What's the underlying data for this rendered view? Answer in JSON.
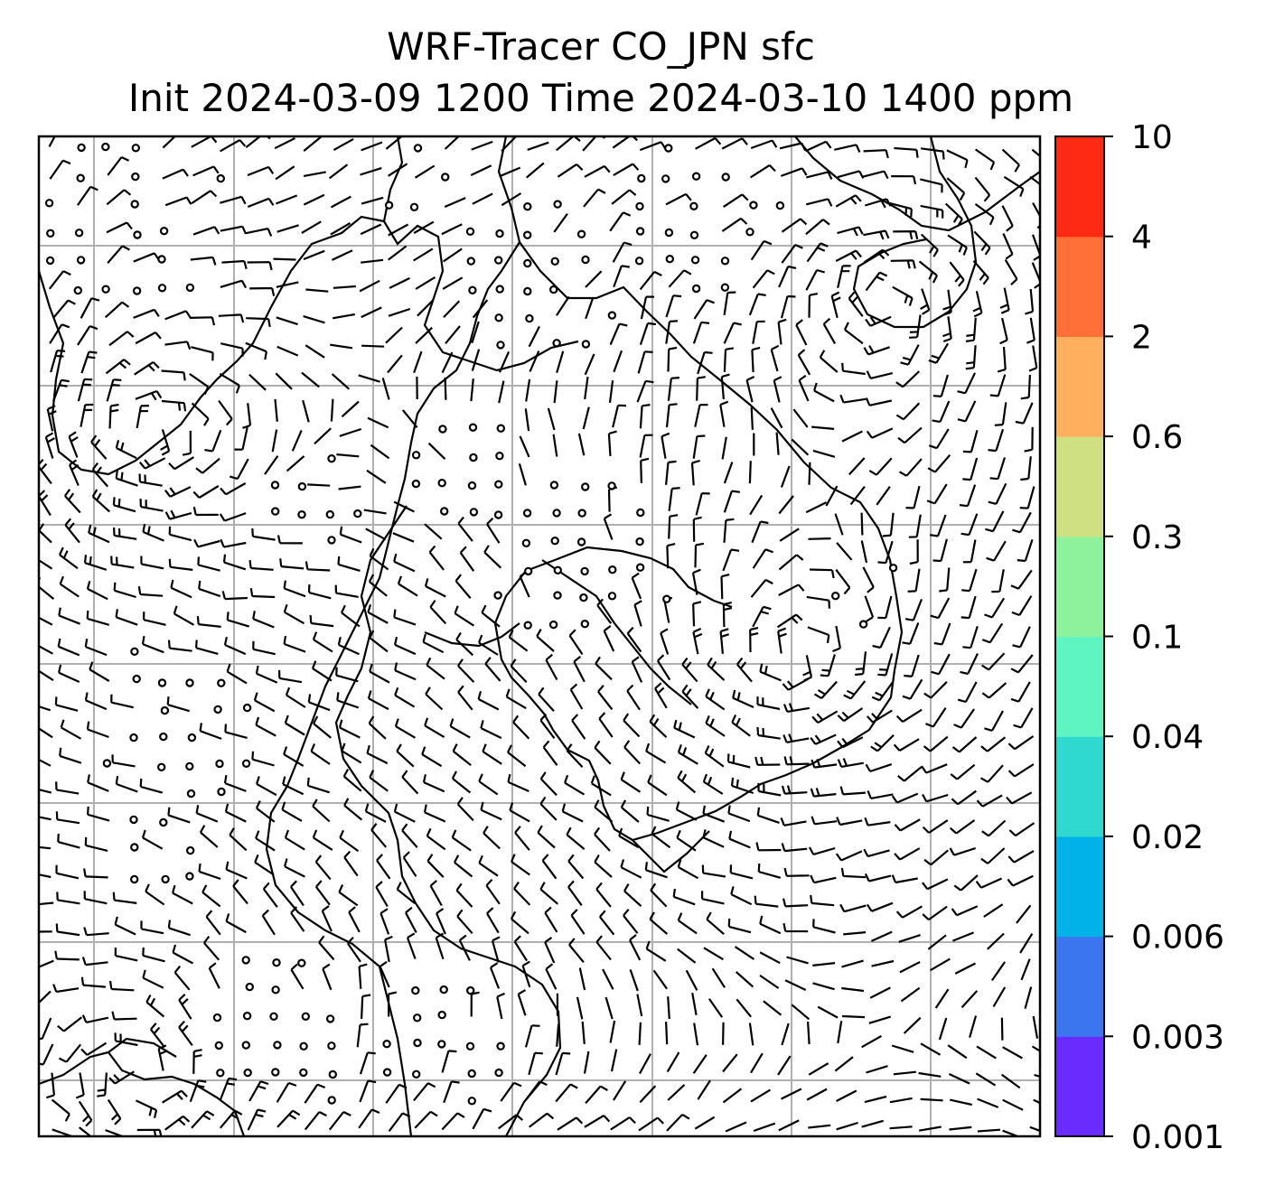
{
  "title": {
    "line1": "WRF-Tracer CO_JPN sfc",
    "line2": "Init 2024-03-09 1200 Time 2024-03-10 1400 ppm"
  },
  "colorbar": {
    "ticks": [
      "0.001",
      "0.003",
      "0.006",
      "0.02",
      "0.04",
      "0.1",
      "0.3",
      "0.6",
      "2",
      "4",
      "10"
    ],
    "colors": [
      "#6a2bff",
      "#3b76ef",
      "#00b2e8",
      "#2fd9d0",
      "#5ff5c3",
      "#8df29b",
      "#cfe082",
      "#ffaf5e",
      "#ff7038",
      "#ff2a14"
    ]
  },
  "map": {
    "frame_color": "#000000",
    "grid_color": "#b0b0b0",
    "glyph_color": "#000000",
    "symbols": [
      "wind-barb",
      "calm-circle"
    ]
  }
}
